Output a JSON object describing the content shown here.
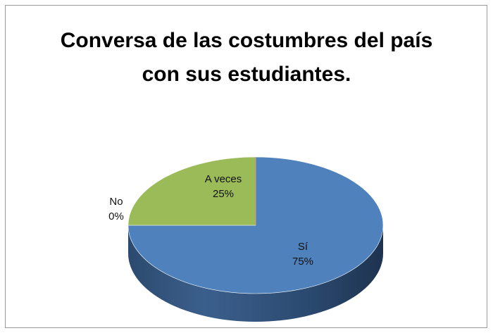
{
  "chart_data": {
    "type": "pie",
    "style": "3d",
    "title": [
      "Conversa de las costumbres del país",
      "con sus estudiantes."
    ],
    "categories": [
      "Sí",
      "A veces",
      "No"
    ],
    "values": [
      75,
      25,
      0
    ],
    "labels": [
      "75%",
      "25%",
      "0%"
    ],
    "colors": {
      "Sí": "#4f81bd",
      "A veces": "#9bbb59",
      "No": "#c0504d"
    },
    "legend": "none"
  }
}
